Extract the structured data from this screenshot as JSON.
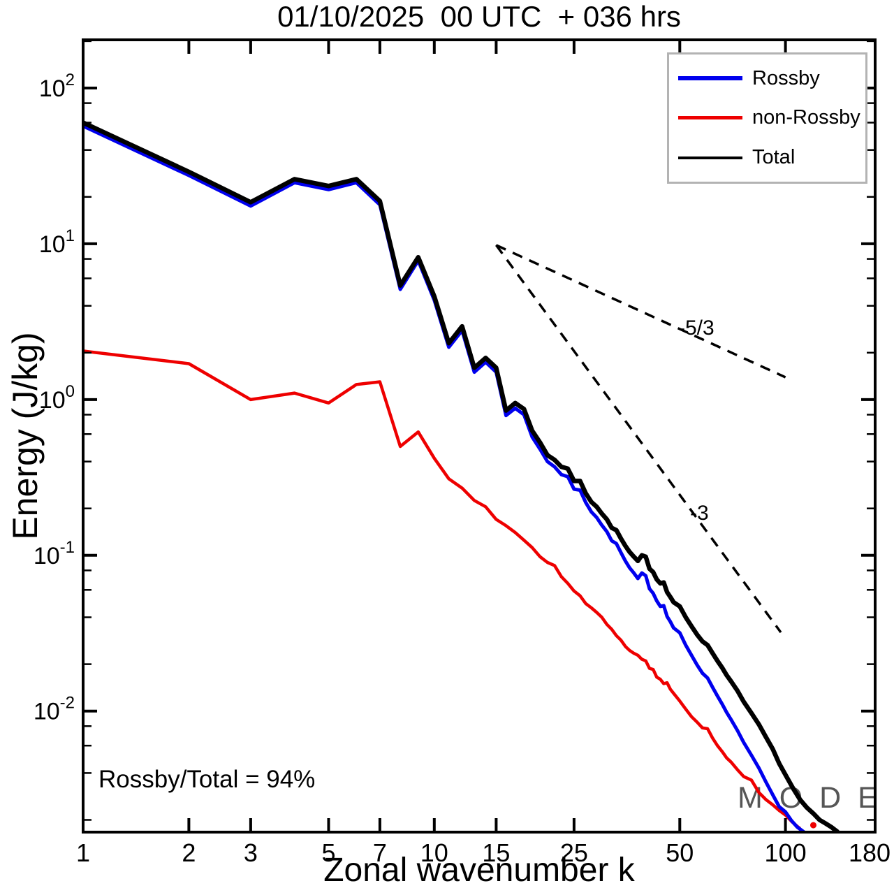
{
  "title": "01/10/2025  00 UTC  + 036 hrs",
  "axes": {
    "x_label": "Zonal wavenumber k",
    "y_label": "Energy (J/kg)"
  },
  "annotations": {
    "ratio_text": "Rossby/Total = 94%",
    "slope_shallow": "-5/3",
    "slope_steep": "-3"
  },
  "watermark": {
    "text": "M O D E S",
    "mark": "©",
    "color": "#565656"
  },
  "legend": {
    "items": [
      {
        "label": "Rossby",
        "color": "#0000ee",
        "thickness": 6
      },
      {
        "label": "non-Rossby",
        "color": "#ee0000",
        "thickness": 5
      },
      {
        "label": "Total",
        "color": "#000000",
        "thickness": 4
      }
    ]
  },
  "chart_data": {
    "type": "line",
    "title": "01/10/2025  00 UTC  + 036 hrs",
    "xlabel": "Zonal wavenumber k",
    "ylabel": "Energy (J/kg)",
    "x_scale": "log",
    "y_scale": "log",
    "xlim": [
      1,
      180
    ],
    "ylim": [
      0.00167,
      204
    ],
    "grid": false,
    "legend_position": "top-right",
    "x_ticks": [
      1,
      2,
      3,
      5,
      7,
      10,
      15,
      25,
      50,
      100,
      180
    ],
    "y_tick_exponents": [
      2,
      1,
      0,
      -1,
      -2
    ],
    "y_minor_mantissas": [
      2,
      4,
      6,
      8
    ],
    "series": [
      {
        "name": "non-Rossby",
        "color": "#ee0000",
        "width": 4.5,
        "points": [
          [
            1,
            2.05
          ],
          [
            2,
            1.7
          ],
          [
            3,
            1.0
          ],
          [
            4,
            1.1
          ],
          [
            5,
            0.95
          ],
          [
            6,
            1.25
          ],
          [
            7,
            1.3
          ],
          [
            8,
            0.5
          ],
          [
            9,
            0.62
          ],
          [
            10,
            0.42
          ],
          [
            11,
            0.31
          ],
          [
            12,
            0.27
          ],
          [
            13,
            0.225
          ],
          [
            14,
            0.205
          ],
          [
            15,
            0.17
          ],
          [
            16,
            0.155
          ],
          [
            17,
            0.14
          ],
          [
            18,
            0.125
          ],
          [
            19,
            0.112
          ],
          [
            20,
            0.098
          ],
          [
            21,
            0.09
          ],
          [
            22,
            0.086
          ],
          [
            23,
            0.073
          ],
          [
            24,
            0.066
          ],
          [
            25,
            0.059
          ],
          [
            26,
            0.055
          ],
          [
            27,
            0.049
          ],
          [
            28,
            0.046
          ],
          [
            29,
            0.043
          ],
          [
            30,
            0.04
          ],
          [
            31,
            0.036
          ],
          [
            32,
            0.0335
          ],
          [
            33,
            0.0305
          ],
          [
            34,
            0.0285
          ],
          [
            35,
            0.026
          ],
          [
            36,
            0.0245
          ],
          [
            37,
            0.0235
          ],
          [
            38,
            0.0228
          ],
          [
            39,
            0.0215
          ],
          [
            40,
            0.021
          ],
          [
            41,
            0.0188
          ],
          [
            42,
            0.0185
          ],
          [
            43,
            0.0165
          ],
          [
            44,
            0.016
          ],
          [
            45,
            0.015
          ],
          [
            46,
            0.0152
          ],
          [
            47,
            0.0138
          ],
          [
            48,
            0.013
          ],
          [
            50,
            0.0116
          ],
          [
            52,
            0.0103
          ],
          [
            54,
            0.0092
          ],
          [
            56,
            0.0085
          ],
          [
            58,
            0.0078
          ],
          [
            60,
            0.0077
          ],
          [
            62,
            0.0067
          ],
          [
            64,
            0.006
          ],
          [
            66,
            0.0055
          ],
          [
            68,
            0.005
          ],
          [
            70,
            0.0047
          ],
          [
            73,
            0.0042
          ],
          [
            76,
            0.0038
          ],
          [
            80,
            0.0036
          ],
          [
            84,
            0.003
          ],
          [
            88,
            0.0027
          ],
          [
            92,
            0.0025
          ],
          [
            96,
            0.0023
          ],
          [
            100,
            0.00215
          ],
          [
            104,
            0.00196
          ],
          [
            108,
            0.00182
          ],
          [
            110,
            0.00176
          ]
        ]
      },
      {
        "name": "Rossby",
        "color": "#0000ee",
        "width": 5,
        "points": [
          [
            1,
            57
          ],
          [
            2,
            27.5
          ],
          [
            3,
            17.5
          ],
          [
            4,
            24.7
          ],
          [
            5,
            22.3
          ],
          [
            6,
            24.7
          ],
          [
            7,
            17.8
          ],
          [
            8,
            5.1
          ],
          [
            9,
            7.8
          ],
          [
            10,
            4.35
          ],
          [
            11,
            2.17
          ],
          [
            12,
            2.78
          ],
          [
            13,
            1.5
          ],
          [
            14,
            1.74
          ],
          [
            15,
            1.5
          ],
          [
            16,
            0.79
          ],
          [
            17,
            0.88
          ],
          [
            18,
            0.8
          ],
          [
            19,
            0.575
          ],
          [
            20,
            0.48
          ],
          [
            21,
            0.4
          ],
          [
            22,
            0.37
          ],
          [
            23,
            0.33
          ],
          [
            24,
            0.32
          ],
          [
            25,
            0.266
          ],
          [
            26,
            0.262
          ],
          [
            27,
            0.218
          ],
          [
            28,
            0.19
          ],
          [
            29,
            0.175
          ],
          [
            30,
            0.156
          ],
          [
            31,
            0.142
          ],
          [
            32,
            0.124
          ],
          [
            33,
            0.119
          ],
          [
            34,
            0.104
          ],
          [
            35,
            0.092
          ],
          [
            36,
            0.083
          ],
          [
            37,
            0.077
          ],
          [
            38,
            0.071
          ],
          [
            39,
            0.077
          ],
          [
            40,
            0.074
          ],
          [
            41,
            0.061
          ],
          [
            42,
            0.057
          ],
          [
            43,
            0.051
          ],
          [
            44,
            0.047
          ],
          [
            45,
            0.0475
          ],
          [
            46,
            0.0405
          ],
          [
            47,
            0.0375
          ],
          [
            48,
            0.0342
          ],
          [
            50,
            0.0318
          ],
          [
            52,
            0.0265
          ],
          [
            54,
            0.0228
          ],
          [
            56,
            0.0198
          ],
          [
            58,
            0.0175
          ],
          [
            60,
            0.0163
          ],
          [
            62,
            0.0142
          ],
          [
            64,
            0.0125
          ],
          [
            66,
            0.0111
          ],
          [
            68,
            0.0098
          ],
          [
            70,
            0.0088
          ],
          [
            73,
            0.0075
          ],
          [
            76,
            0.0063
          ],
          [
            80,
            0.0052
          ],
          [
            84,
            0.0043
          ],
          [
            88,
            0.0035
          ],
          [
            92,
            0.0029
          ],
          [
            96,
            0.00243
          ],
          [
            100,
            0.00225
          ],
          [
            104,
            0.00198
          ],
          [
            108,
            0.0018
          ],
          [
            113,
            0.00167
          ]
        ]
      },
      {
        "name": "Total",
        "color": "#000000",
        "width": 6.5,
        "points": [
          [
            1,
            60
          ],
          [
            2,
            29
          ],
          [
            3,
            18.5
          ],
          [
            4,
            26
          ],
          [
            5,
            23.5
          ],
          [
            6,
            26
          ],
          [
            7,
            18.8
          ],
          [
            8,
            5.4
          ],
          [
            9,
            8.2
          ],
          [
            10,
            4.6
          ],
          [
            11,
            2.3
          ],
          [
            12,
            2.95
          ],
          [
            13,
            1.6
          ],
          [
            14,
            1.85
          ],
          [
            15,
            1.6
          ],
          [
            16,
            0.85
          ],
          [
            17,
            0.95
          ],
          [
            18,
            0.87
          ],
          [
            19,
            0.63
          ],
          [
            20,
            0.53
          ],
          [
            21,
            0.44
          ],
          [
            22,
            0.41
          ],
          [
            23,
            0.37
          ],
          [
            24,
            0.36
          ],
          [
            25,
            0.3
          ],
          [
            26,
            0.3
          ],
          [
            27,
            0.25
          ],
          [
            28,
            0.22
          ],
          [
            29,
            0.205
          ],
          [
            30,
            0.185
          ],
          [
            31,
            0.17
          ],
          [
            32,
            0.15
          ],
          [
            33,
            0.145
          ],
          [
            34,
            0.128
          ],
          [
            35,
            0.115
          ],
          [
            36,
            0.105
          ],
          [
            37,
            0.098
          ],
          [
            38,
            0.092
          ],
          [
            39,
            0.1
          ],
          [
            40,
            0.098
          ],
          [
            41,
            0.082
          ],
          [
            42,
            0.078
          ],
          [
            43,
            0.07
          ],
          [
            44,
            0.066
          ],
          [
            45,
            0.067
          ],
          [
            46,
            0.058
          ],
          [
            47,
            0.054
          ],
          [
            48,
            0.05
          ],
          [
            50,
            0.047
          ],
          [
            52,
            0.04
          ],
          [
            54,
            0.035
          ],
          [
            56,
            0.031
          ],
          [
            58,
            0.028
          ],
          [
            60,
            0.0265
          ],
          [
            62,
            0.0235
          ],
          [
            64,
            0.021
          ],
          [
            66,
            0.019
          ],
          [
            68,
            0.017
          ],
          [
            70,
            0.0155
          ],
          [
            73,
            0.0135
          ],
          [
            76,
            0.0115
          ],
          [
            80,
            0.0097
          ],
          [
            84,
            0.0082
          ],
          [
            88,
            0.0068
          ],
          [
            92,
            0.0057
          ],
          [
            96,
            0.0046
          ],
          [
            100,
            0.0039
          ],
          [
            105,
            0.0032
          ],
          [
            110,
            0.0027
          ],
          [
            115,
            0.0024
          ],
          [
            120,
            0.0022
          ],
          [
            125,
            0.002
          ],
          [
            130,
            0.0019
          ],
          [
            135,
            0.0018
          ],
          [
            141,
            0.00167
          ]
        ]
      }
    ],
    "reference_lines": [
      {
        "label": "-5/3",
        "from": [
          15,
          9.8
        ],
        "to": [
          100,
          1.39
        ]
      },
      {
        "label": "-3",
        "from": [
          15,
          9.8
        ],
        "to": [
          97,
          0.032
        ]
      }
    ],
    "isolated_point": {
      "series": "non-Rossby",
      "color": "#ee0000",
      "k": 120,
      "value": 0.00185
    },
    "ratio_annotation": "Rossby/Total = 94%"
  }
}
